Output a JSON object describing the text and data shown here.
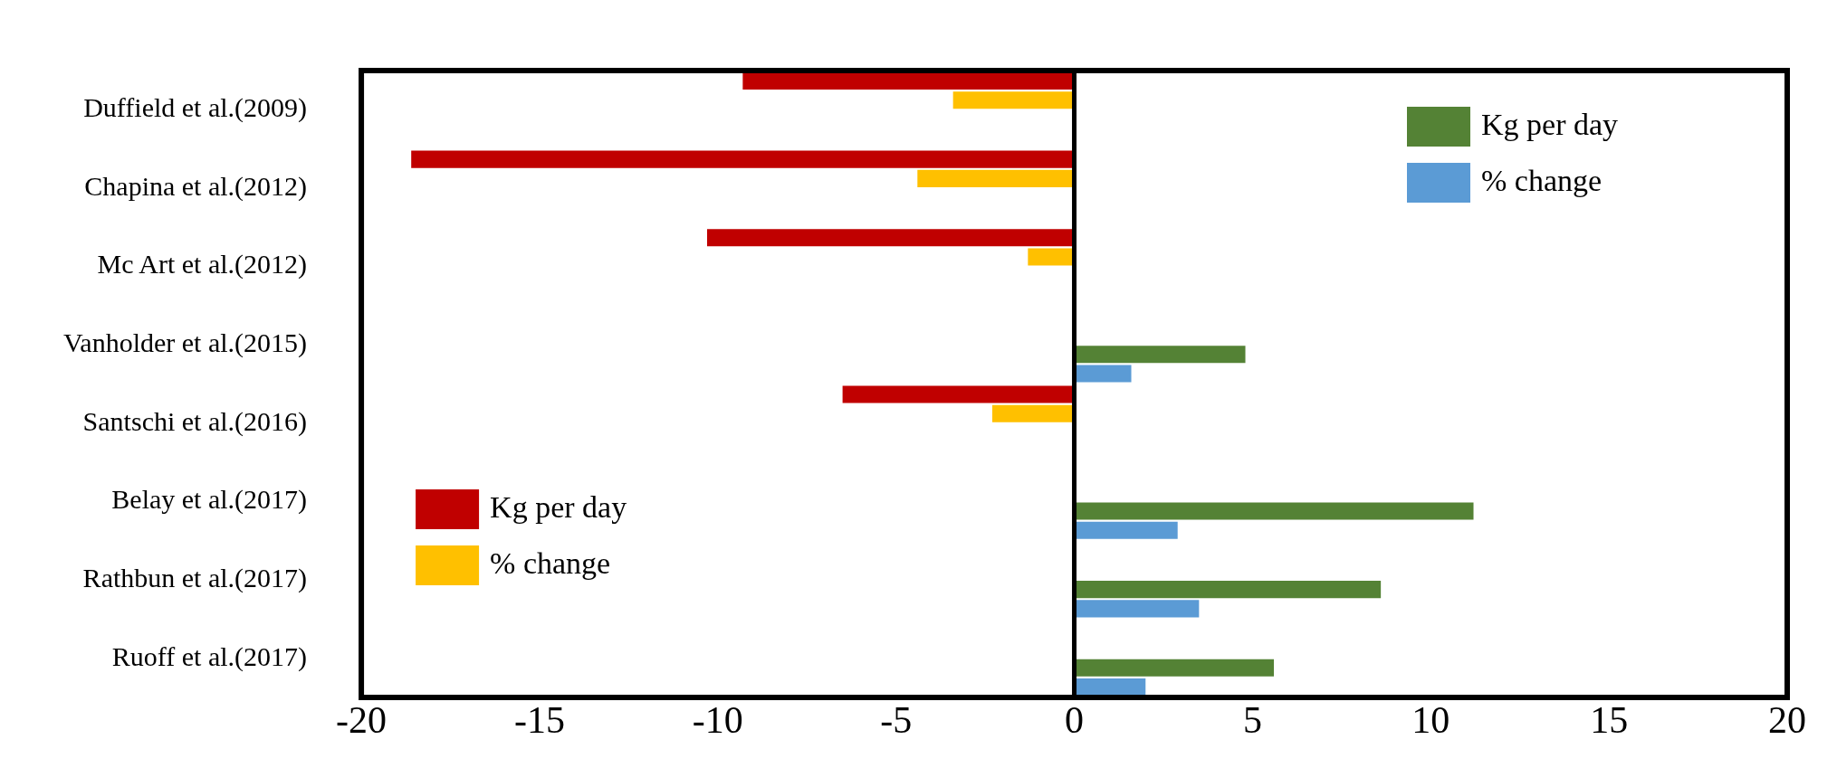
{
  "chart_data": {
    "type": "bar",
    "orientation": "horizontal",
    "legend": "top right",
    "grid": false,
    "ref_lines": [
      {
        "axis": "x",
        "value": 0,
        "color": "#000000"
      }
    ],
    "categories": [
      "Duffield et al.(2009)",
      "Chapina et al.(2012)",
      "Mc Art et al.(2012)",
      "Vanholder et al.(2015)",
      "Santschi et al.(2016)",
      "Belay et al.(2017)",
      "Rathbun et al.(2017)",
      "Ruoff et al.(2017)"
    ],
    "xlim": [
      -20,
      20
    ],
    "xticks": [
      -20,
      -15,
      -10,
      -5,
      0,
      5,
      10,
      15,
      20
    ],
    "series": [
      {
        "name": "Kg per day",
        "color": "#c00000",
        "values": [
          -9.3,
          -18.6,
          -10.3,
          null,
          -6.5,
          null,
          null,
          null
        ]
      },
      {
        "name": "% change",
        "color": "#ffc000",
        "values": [
          -3.4,
          -4.4,
          -1.3,
          null,
          -2.3,
          null,
          null,
          null
        ]
      },
      {
        "name": "Kg per day",
        "color": "#548235",
        "values": [
          null,
          null,
          null,
          4.8,
          null,
          11.2,
          8.6,
          5.6
        ]
      },
      {
        "name": "% change",
        "color": "#5b9bd5",
        "values": [
          null,
          null,
          null,
          1.6,
          null,
          2.9,
          3.5,
          2.0
        ]
      }
    ]
  }
}
